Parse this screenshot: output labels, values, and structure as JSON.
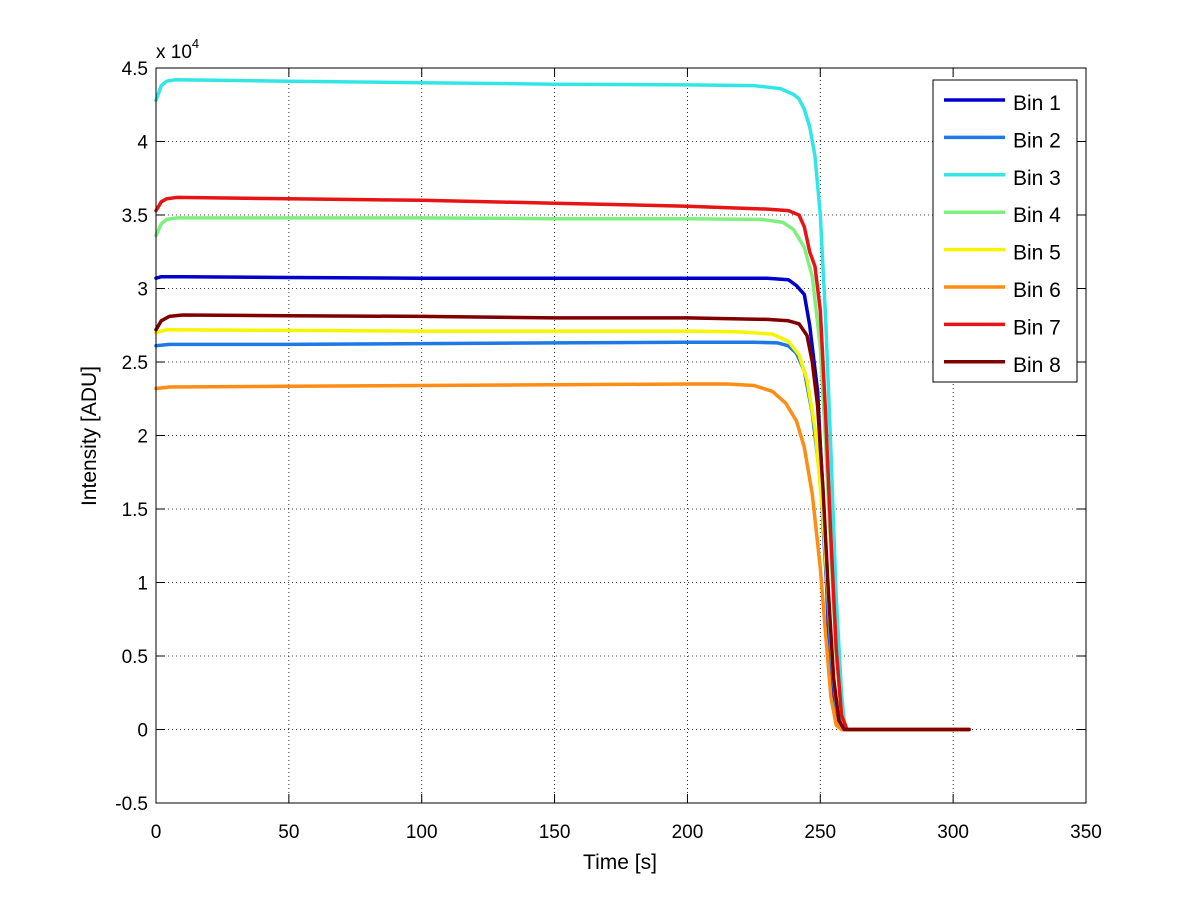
{
  "chart_data": {
    "type": "line",
    "title": "",
    "xlabel": "Time [s]",
    "ylabel": "Intensity [ADU]",
    "y_multiplier_label": "x 10",
    "y_multiplier_exponent": "4",
    "xlim": [
      0,
      350
    ],
    "ylim": [
      -0.5,
      4.5
    ],
    "x_ticks": [
      "0",
      "50",
      "100",
      "150",
      "200",
      "250",
      "300",
      "350"
    ],
    "y_ticks": [
      "-0.5",
      "0",
      "0.5",
      "1",
      "1.5",
      "2",
      "2.5",
      "3",
      "3.5",
      "4",
      "4.5"
    ],
    "grid": true,
    "legend_position": "top-right",
    "series": [
      {
        "name": "Bin 1",
        "color": "#0000cd",
        "x": [
          0,
          2,
          4,
          10,
          50,
          100,
          150,
          200,
          230,
          238,
          241,
          244,
          246,
          249,
          251,
          253,
          255,
          256,
          258,
          260,
          280,
          306
        ],
        "y": [
          3.07,
          3.08,
          3.08,
          3.08,
          3.075,
          3.07,
          3.07,
          3.07,
          3.07,
          3.06,
          3.02,
          2.96,
          2.75,
          2.3,
          1.6,
          0.7,
          0.2,
          0.05,
          0,
          0,
          0,
          0
        ]
      },
      {
        "name": "Bin 2",
        "color": "#1e78e6",
        "x": [
          0,
          5,
          50,
          100,
          150,
          200,
          225,
          234,
          238,
          241,
          244,
          247,
          250,
          252,
          254,
          256,
          258,
          260,
          280,
          306
        ],
        "y": [
          2.61,
          2.62,
          2.62,
          2.625,
          2.63,
          2.635,
          2.635,
          2.63,
          2.61,
          2.56,
          2.44,
          2.15,
          1.7,
          1.1,
          0.5,
          0.15,
          0.02,
          0,
          0,
          0
        ]
      },
      {
        "name": "Bin 3",
        "color": "#33e6e6",
        "x": [
          0,
          2,
          4,
          7,
          50,
          100,
          150,
          200,
          225,
          235,
          240,
          242,
          244,
          246,
          248,
          250,
          252,
          254,
          256,
          258,
          259,
          260,
          280,
          306
        ],
        "y": [
          4.28,
          4.38,
          4.41,
          4.42,
          4.41,
          4.4,
          4.39,
          4.385,
          4.38,
          4.36,
          4.32,
          4.29,
          4.22,
          4.1,
          3.9,
          3.5,
          2.8,
          1.9,
          0.9,
          0.25,
          0.05,
          0,
          0,
          0
        ]
      },
      {
        "name": "Bin 4",
        "color": "#7ff07f",
        "x": [
          0,
          2,
          4,
          8,
          50,
          100,
          150,
          200,
          228,
          236,
          240,
          244,
          247,
          250,
          252,
          254,
          256,
          258,
          260,
          280,
          306
        ],
        "y": [
          3.36,
          3.44,
          3.47,
          3.48,
          3.48,
          3.48,
          3.475,
          3.475,
          3.47,
          3.45,
          3.4,
          3.28,
          3.08,
          2.6,
          1.95,
          1.2,
          0.5,
          0.12,
          0,
          0,
          0
        ]
      },
      {
        "name": "Bin 5",
        "color": "#f5f500",
        "x": [
          0,
          4,
          50,
          100,
          150,
          200,
          220,
          232,
          238,
          242,
          245,
          248,
          251,
          253,
          255,
          257,
          259,
          280,
          306
        ],
        "y": [
          2.7,
          2.72,
          2.715,
          2.71,
          2.71,
          2.71,
          2.705,
          2.69,
          2.64,
          2.55,
          2.38,
          2.05,
          1.45,
          0.9,
          0.35,
          0.05,
          0,
          0,
          0
        ]
      },
      {
        "name": "Bin 6",
        "color": "#ff8c14",
        "x": [
          0,
          5,
          50,
          100,
          150,
          200,
          215,
          225,
          232,
          237,
          241,
          244,
          247,
          250,
          252,
          254,
          256,
          258,
          280,
          306
        ],
        "y": [
          2.32,
          2.33,
          2.335,
          2.34,
          2.345,
          2.35,
          2.35,
          2.34,
          2.3,
          2.22,
          2.1,
          1.92,
          1.6,
          1.1,
          0.65,
          0.22,
          0.03,
          0,
          0,
          0
        ]
      },
      {
        "name": "Bin 7",
        "color": "#e61414",
        "x": [
          0,
          2,
          4,
          8,
          50,
          100,
          150,
          200,
          230,
          238,
          242,
          244,
          246,
          248,
          250,
          252,
          254,
          256,
          258,
          260,
          280,
          306
        ],
        "y": [
          3.53,
          3.59,
          3.61,
          3.62,
          3.61,
          3.6,
          3.58,
          3.56,
          3.54,
          3.53,
          3.5,
          3.42,
          3.25,
          3.15,
          2.85,
          2.15,
          1.3,
          0.55,
          0.1,
          0,
          0,
          0
        ]
      },
      {
        "name": "Bin 8",
        "color": "#800000",
        "x": [
          0,
          2,
          5,
          10,
          50,
          100,
          150,
          200,
          230,
          238,
          242,
          245,
          247,
          249,
          251,
          253,
          255,
          257,
          259,
          280,
          306
        ],
        "y": [
          2.72,
          2.78,
          2.81,
          2.82,
          2.815,
          2.81,
          2.8,
          2.8,
          2.79,
          2.78,
          2.76,
          2.68,
          2.5,
          2.2,
          1.65,
          0.95,
          0.35,
          0.06,
          0,
          0,
          0
        ]
      }
    ]
  }
}
